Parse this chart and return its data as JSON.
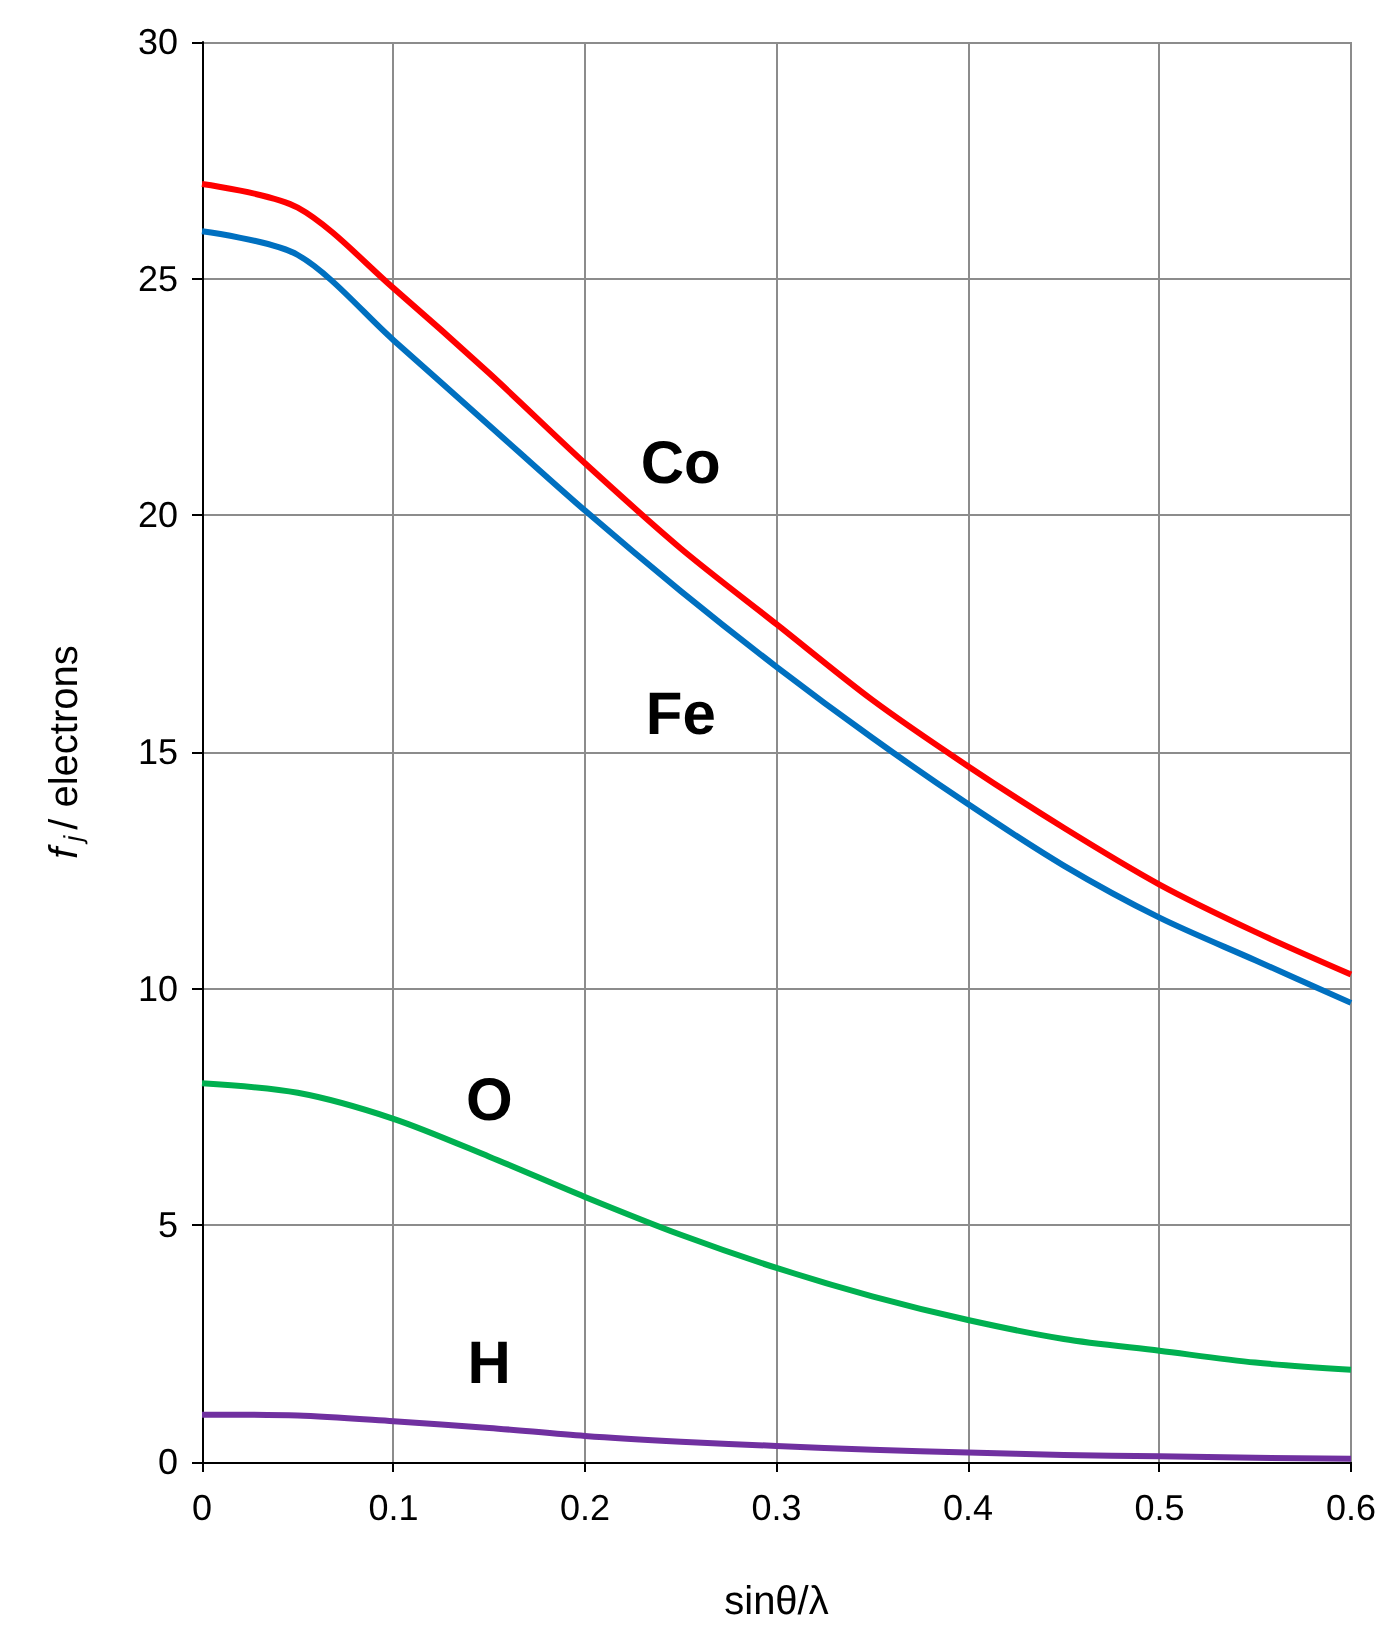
{
  "chart_data": {
    "type": "line",
    "xlabel": "sinθ/λ",
    "ylabel": "f$_{j}$/ electrons",
    "x": [
      0,
      0.05,
      0.1,
      0.15,
      0.2,
      0.25,
      0.3,
      0.35,
      0.4,
      0.45,
      0.5,
      0.55,
      0.6
    ],
    "series": [
      {
        "name": "Co",
        "color": "#ff0000",
        "values": [
          27,
          26.5,
          24.8,
          23.0,
          21.1,
          19.3,
          17.7,
          16.1,
          14.7,
          13.4,
          12.2,
          11.2,
          10.3
        ]
      },
      {
        "name": "Fe",
        "color": "#0070c0",
        "values": [
          26,
          25.5,
          23.7,
          21.9,
          20.1,
          18.4,
          16.8,
          15.3,
          13.9,
          12.6,
          11.5,
          10.6,
          9.7
        ]
      },
      {
        "name": "O",
        "color": "#00b050",
        "values": [
          8,
          7.8,
          7.25,
          6.45,
          5.6,
          4.8,
          4.1,
          3.5,
          3.0,
          2.6,
          2.35,
          2.1,
          1.95
        ]
      },
      {
        "name": "H",
        "color": "#7030a0",
        "values": [
          1,
          0.98,
          0.86,
          0.72,
          0.55,
          0.43,
          0.34,
          0.26,
          0.2,
          0.15,
          0.12,
          0.09,
          0.07
        ]
      }
    ],
    "xlim": [
      0,
      0.6
    ],
    "xticks": [
      0,
      0.1,
      0.2,
      0.3,
      0.4,
      0.5,
      0.6
    ],
    "ylim": [
      0,
      30
    ],
    "yticks": [
      0,
      5,
      10,
      15,
      20,
      25,
      30
    ],
    "grid": true,
    "legend": false,
    "marker": "none",
    "line_style": "solid"
  }
}
